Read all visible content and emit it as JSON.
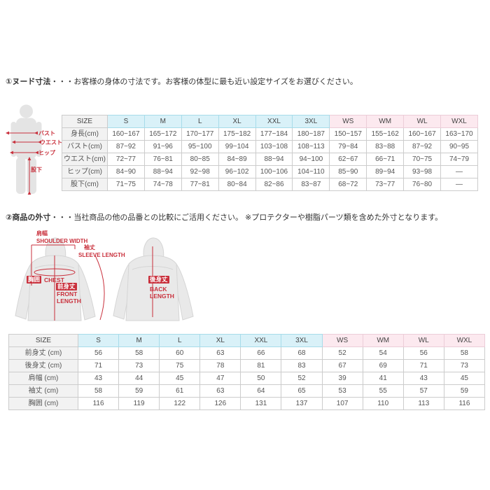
{
  "sections": {
    "nude": {
      "title_bold": "①ヌード寸法",
      "title_rest": "・・・お客様の身体の寸法です。お客様の体型に最も近い設定サイズをお選びください。"
    },
    "outer": {
      "title_bold": "②商品の外寸",
      "title_rest": "・・・当社商品の他の品番との比較にご活用ください。 ※プロテクターや樹脂パーツ類を含めた外寸となります。"
    }
  },
  "figure_labels": {
    "bust": "バスト",
    "waist": "ウエスト",
    "hip": "ヒップ",
    "inseam": "股下"
  },
  "jacket_labels": {
    "shoulder_jp": "肩幅",
    "shoulder_en": "SHOULDER WIDTH",
    "sleeve_jp": "袖丈",
    "sleeve_en": "SLEEVE LENGTH",
    "chest_jp": "胸囲",
    "chest_en": "CHEST",
    "front_jp": "前身丈",
    "front_en_1": "FRONT",
    "front_en_2": "LENGTH",
    "back_jp": "後身丈",
    "back_en_1": "BACK",
    "back_en_2": "LENGTH"
  },
  "size_table_nude": {
    "header": [
      "SIZE",
      "S",
      "M",
      "L",
      "XL",
      "XXL",
      "3XL",
      "WS",
      "WM",
      "WL",
      "WXL"
    ],
    "col_types": [
      "label",
      "cyan",
      "cyan",
      "cyan",
      "cyan",
      "cyan",
      "cyan",
      "pink",
      "pink",
      "pink",
      "pink"
    ],
    "rows": [
      {
        "label": "身長(cm)",
        "values": [
          "160~167",
          "165~172",
          "170~177",
          "175~182",
          "177~184",
          "180~187",
          "150~157",
          "155~162",
          "160~167",
          "163~170"
        ]
      },
      {
        "label": "バスト(cm)",
        "values": [
          "87~92",
          "91~96",
          "95~100",
          "99~104",
          "103~108",
          "108~113",
          "79~84",
          "83~88",
          "87~92",
          "90~95"
        ]
      },
      {
        "label": "ウエスト(cm)",
        "values": [
          "72~77",
          "76~81",
          "80~85",
          "84~89",
          "88~94",
          "94~100",
          "62~67",
          "66~71",
          "70~75",
          "74~79"
        ]
      },
      {
        "label": "ヒップ(cm)",
        "values": [
          "84~90",
          "88~94",
          "92~98",
          "96~102",
          "100~106",
          "104~110",
          "85~90",
          "89~94",
          "93~98",
          "—"
        ]
      },
      {
        "label": "股下(cm)",
        "values": [
          "71~75",
          "74~78",
          "77~81",
          "80~84",
          "82~86",
          "83~87",
          "68~72",
          "73~77",
          "76~80",
          "—"
        ]
      }
    ]
  },
  "size_table_outer": {
    "header": [
      "SIZE",
      "S",
      "M",
      "L",
      "XL",
      "XXL",
      "3XL",
      "WS",
      "WM",
      "WL",
      "WXL"
    ],
    "col_types": [
      "label",
      "cyan",
      "cyan",
      "cyan",
      "cyan",
      "cyan",
      "cyan",
      "pink",
      "pink",
      "pink",
      "pink"
    ],
    "rows": [
      {
        "label": "前身丈 (cm)",
        "values": [
          "56",
          "58",
          "60",
          "63",
          "66",
          "68",
          "52",
          "54",
          "56",
          "58"
        ]
      },
      {
        "label": "後身丈 (cm)",
        "values": [
          "71",
          "73",
          "75",
          "78",
          "81",
          "83",
          "67",
          "69",
          "71",
          "73"
        ]
      },
      {
        "label": "肩幅 (cm)",
        "values": [
          "43",
          "44",
          "45",
          "47",
          "50",
          "52",
          "39",
          "41",
          "43",
          "45"
        ]
      },
      {
        "label": "袖丈 (cm)",
        "values": [
          "58",
          "59",
          "61",
          "63",
          "64",
          "65",
          "53",
          "55",
          "57",
          "59"
        ]
      },
      {
        "label": "胸囲 (cm)",
        "values": [
          "116",
          "119",
          "122",
          "126",
          "131",
          "137",
          "107",
          "110",
          "113",
          "116"
        ]
      }
    ]
  },
  "colors": {
    "accent_red": "#c9303c",
    "header_cyan": "#d9f1f8",
    "header_pink": "#fce9ef",
    "label_gray": "#f2f2f2",
    "border_gray": "#cccccc",
    "silhouette_gray": "#e4e4e4"
  }
}
